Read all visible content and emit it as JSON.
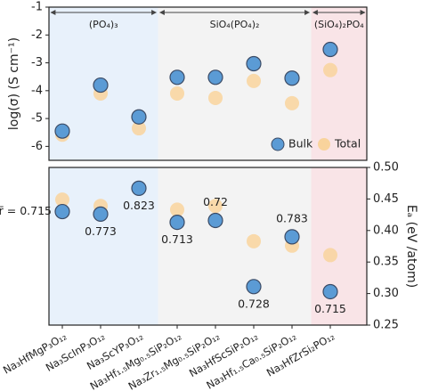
{
  "chart_data": [
    {
      "type": "scatter",
      "ylabel": "log(σ) (S cm⁻¹)",
      "regions": [
        "(PO₄)₃",
        "SiO₄(PO₄)₂",
        "(SiO₄)₂PO₄"
      ],
      "series": [
        {
          "name": "Bulk",
          "color": "#5b9bd5",
          "values": [
            -5.45,
            -3.8,
            -4.94,
            -3.52,
            -3.52,
            -3.03,
            -3.55,
            -2.52
          ]
        },
        {
          "name": "Total",
          "color": "#f9d39c",
          "values": [
            -5.58,
            -4.1,
            -5.35,
            -4.1,
            -4.26,
            -3.65,
            -4.45,
            -3.26
          ]
        }
      ],
      "ylim": [
        -6.5,
        -1
      ],
      "yticks": [
        -6,
        -5,
        -4,
        -3,
        -2,
        -1
      ],
      "legend": "lower right"
    },
    {
      "type": "scatter",
      "ylabel": "Eₐ (eV /atom)",
      "categories": [
        "Na₃HfMgP₃O₁₂",
        "Na₃ScInP₃O₁₂",
        "Na₃ScYP₃O₁₂",
        "Na₃Hf₁.₅Mg₀.₅SiP₂O₁₂",
        "Na₃Zr₁.₅Mg₀.₅SiP₂O₁₂",
        "Na₃HfScSiP₂O₁₂",
        "Na₃Hf₁.₅Ca₀.₅SiP₂O₁₂",
        "Na₃HfZrSi₂PO₁₂"
      ],
      "series": [
        {
          "name": "Bulk",
          "color": "#5b9bd5",
          "values": [
            0.43,
            0.426,
            0.467,
            0.413,
            0.416,
            0.311,
            0.39,
            0.303
          ]
        },
        {
          "name": "Total",
          "color": "#f9d39c",
          "values": [
            0.449,
            0.439,
            0.467,
            0.433,
            0.439,
            0.383,
            0.376,
            0.361
          ]
        }
      ],
      "annotations": [
        "r̄ = 0.715",
        "0.773",
        "0.823",
        "0.713",
        "0.72",
        "0.728",
        "0.783",
        "0.715"
      ],
      "ylim": [
        0.25,
        0.5
      ],
      "yticks": [
        0.25,
        {
          "value": 0.3,
          "label": "0.30"
        },
        0.35,
        {
          "value": 0.4,
          "label": "0.40"
        },
        0.45,
        {
          "value": 0.5,
          "label": "0.50"
        }
      ]
    }
  ]
}
